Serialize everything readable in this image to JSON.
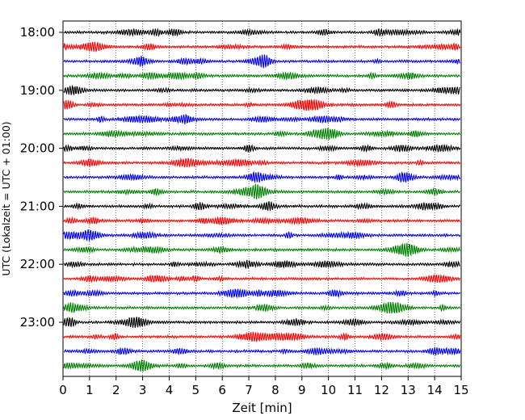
{
  "chart_data": {
    "type": "line",
    "title": "",
    "xlabel": "Zeit  [min]",
    "ylabel": "UTC (Lokalzeit = UTC + 01:00)",
    "xlim": [
      0,
      15
    ],
    "x_ticks": [
      "0",
      "1",
      "2",
      "3",
      "4",
      "5",
      "6",
      "7",
      "8",
      "9",
      "10",
      "11",
      "12",
      "13",
      "14",
      "15"
    ],
    "y_ticks": [
      "18:00",
      "19:00",
      "20:00",
      "21:00",
      "22:00",
      "23:00"
    ],
    "grid": "vertical dotted",
    "colors": [
      "#000000",
      "#ff0000",
      "#0000ff",
      "#008000"
    ],
    "traces": [
      {
        "start": "18:00",
        "color": "#000000"
      },
      {
        "start": "18:15",
        "color": "#ff0000"
      },
      {
        "start": "18:30",
        "color": "#0000ff"
      },
      {
        "start": "18:45",
        "color": "#008000"
      },
      {
        "start": "19:00",
        "color": "#000000"
      },
      {
        "start": "19:15",
        "color": "#ff0000"
      },
      {
        "start": "19:30",
        "color": "#0000ff"
      },
      {
        "start": "19:45",
        "color": "#008000"
      },
      {
        "start": "20:00",
        "color": "#000000"
      },
      {
        "start": "20:15",
        "color": "#ff0000"
      },
      {
        "start": "20:30",
        "color": "#0000ff"
      },
      {
        "start": "20:45",
        "color": "#008000"
      },
      {
        "start": "21:00",
        "color": "#000000"
      },
      {
        "start": "21:15",
        "color": "#ff0000"
      },
      {
        "start": "21:30",
        "color": "#0000ff"
      },
      {
        "start": "21:45",
        "color": "#008000"
      },
      {
        "start": "22:00",
        "color": "#000000"
      },
      {
        "start": "22:15",
        "color": "#ff0000"
      },
      {
        "start": "22:30",
        "color": "#0000ff"
      },
      {
        "start": "22:45",
        "color": "#008000"
      },
      {
        "start": "23:00",
        "color": "#000000"
      },
      {
        "start": "23:15",
        "color": "#ff0000"
      },
      {
        "start": "23:30",
        "color": "#0000ff"
      },
      {
        "start": "23:45",
        "color": "#008000"
      }
    ]
  }
}
